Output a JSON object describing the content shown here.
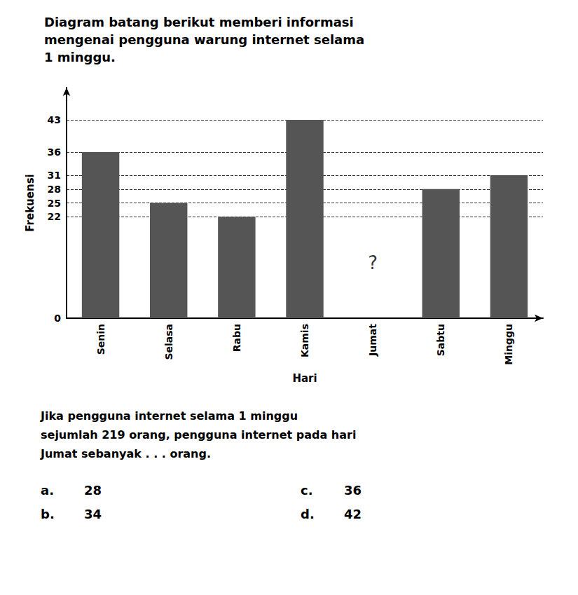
{
  "chart_data": {
    "type": "bar",
    "title": "Diagram batang berikut memberi informasi\nmengenai pengguna warung internet selama\n1 minggu.",
    "categories": [
      "Senin",
      "Selasa",
      "Rabu",
      "Kamis",
      "Jumat",
      "Sabtu",
      "Minggu"
    ],
    "values": [
      36,
      25,
      22,
      43,
      null,
      28,
      31
    ],
    "color": "#555555",
    "x_label": "Hari",
    "y_label": "Frekuensi",
    "ylim": [
      0,
      50
    ],
    "yticks": [
      0,
      22,
      25,
      28,
      31,
      36,
      43
    ],
    "grid": true,
    "annotations": [
      {
        "text": "?",
        "category": "Jumat",
        "y": 12
      },
      {
        "text": "Jika pengguna internet selama 1 minggu\nsejumlah 219 orang, pengguna internet pada hari\nJumat sebanyak . . . orang."
      },
      {
        "label": "a.",
        "text": "28"
      },
      {
        "label": "b.",
        "text": "34"
      },
      {
        "label": "c.",
        "text": "36"
      },
      {
        "label": "d.",
        "text": "42"
      }
    ]
  }
}
